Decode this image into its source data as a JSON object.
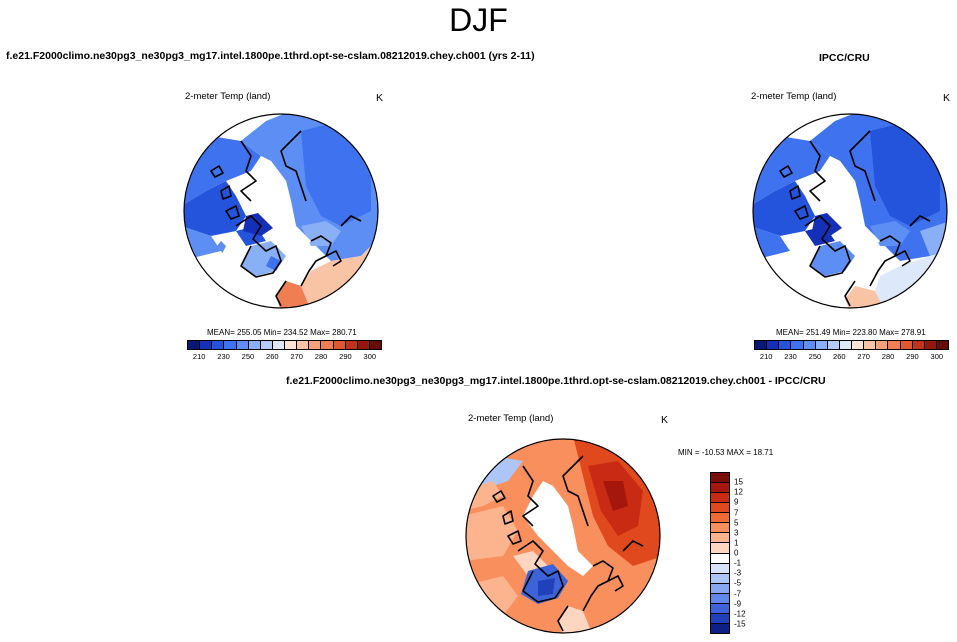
{
  "figure": {
    "season": "DJF",
    "model_title": "f.e21.F2000climo.ne30pg3_ne30pg3_mg17.intel.1800pe.1thrd.opt-se-cslam.08212019.chey.ch001 (yrs 2-11)",
    "obs_title": "IPCC/CRU",
    "diff_title": "f.e21.F2000climo.ne30pg3_ne30pg3_mg17.intel.1800pe.1thrd.opt-se-cslam.08212019.chey.ch001 - IPCC/CRU"
  },
  "panels": {
    "model": {
      "variable": "2-meter Temp (land)",
      "unit": "K",
      "stats": "MEAN= 255.05  Min= 234.52  Max= 280.71",
      "ticks": [
        "210",
        "230",
        "250",
        "260",
        "270",
        "280",
        "290",
        "300"
      ]
    },
    "obs": {
      "variable": "2-meter Temp (land)",
      "unit": "K",
      "stats": "MEAN= 251.49  Min= 223.80  Max= 278.91",
      "ticks": [
        "210",
        "230",
        "250",
        "260",
        "270",
        "280",
        "290",
        "300"
      ]
    },
    "diff": {
      "variable": "2-meter Temp (land)",
      "unit": "K",
      "stats": "MIN = -10.53 MAX =  18.71",
      "ticks": [
        "15",
        "12",
        "9",
        "7",
        "5",
        "3",
        "1",
        "0",
        "-1",
        "-3",
        "-5",
        "-7",
        "-9",
        "-12",
        "-15"
      ]
    }
  },
  "colors": {
    "abs_scale": [
      "#061a74",
      "#1530b8",
      "#2554dc",
      "#3f72ee",
      "#5d8ef3",
      "#89b0f6",
      "#b4ccf8",
      "#dde8fb",
      "#fbe3d6",
      "#f9c3a6",
      "#f5a27b",
      "#ef7e52",
      "#e0572f",
      "#c2331b",
      "#94180e",
      "#660d07"
    ],
    "diff_scale": [
      "#7a0e08",
      "#a5170d",
      "#c92a14",
      "#e0491e",
      "#ef6a34",
      "#f88f5c",
      "#fbb48e",
      "#fcd6c0",
      "#ffffff",
      "#d7e3fb",
      "#aec6f7",
      "#86a8f1",
      "#5f86e8",
      "#3c64d8",
      "#2041b9",
      "#0e1f86"
    ]
  }
}
